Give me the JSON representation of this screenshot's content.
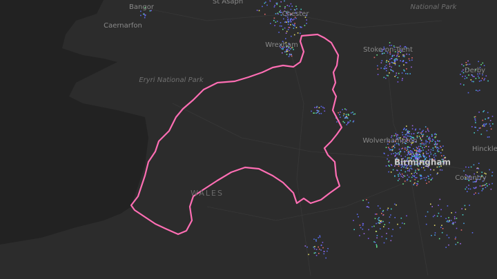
{
  "map": {
    "labels": [
      "Bangor",
      "St Asaph",
      "Chester",
      "National Park",
      "Caernarfon",
      "Wrexham",
      "Stoke-on-Trent",
      "Eryri National Park",
      "Derby",
      "Wolverhampton",
      "Birmingham",
      "Hinckley",
      "Coventry",
      "WALES"
    ]
  }
}
